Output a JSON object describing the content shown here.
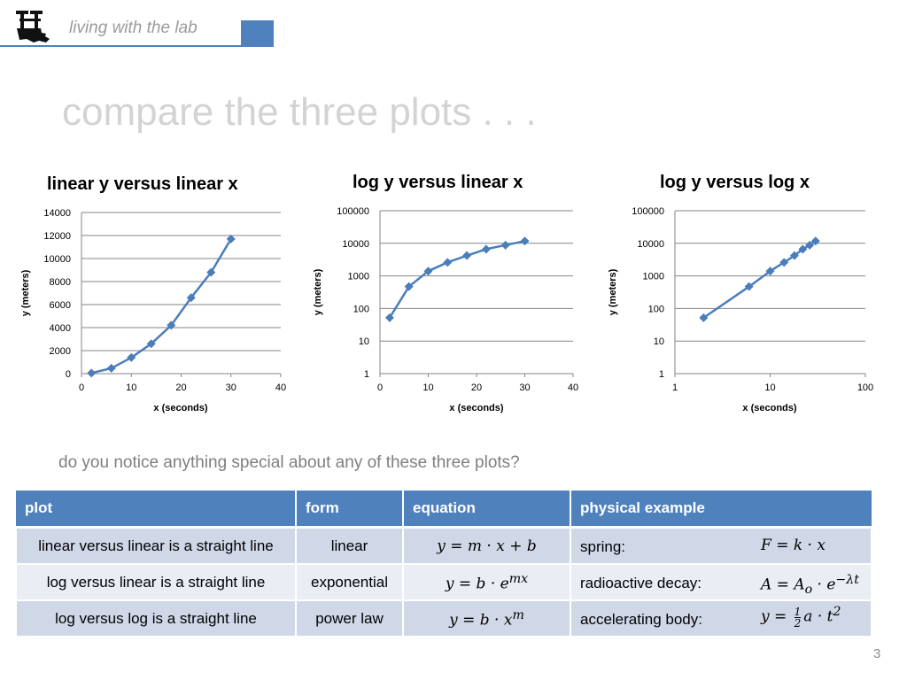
{
  "header": {
    "text": "living with the lab"
  },
  "slide_title": "compare the three plots . . .",
  "question": "do you notice anything special about any of these three plots?",
  "page_number": "3",
  "chart_data": [
    {
      "type": "line",
      "title": "linear y versus linear x",
      "xlabel": "x (seconds)",
      "ylabel": "y (meters)",
      "xscale": "linear",
      "yscale": "linear",
      "xlim": [
        0,
        40
      ],
      "ylim": [
        0,
        14000
      ],
      "xticks": [
        0,
        10,
        20,
        30,
        40
      ],
      "yticks": [
        0,
        2000,
        4000,
        6000,
        8000,
        10000,
        12000,
        14000
      ],
      "xtick_labels": [
        "0",
        "10",
        "20",
        "30",
        "40"
      ],
      "ytick_labels": [
        "0",
        "2000",
        "4000",
        "6000",
        "8000",
        "10000",
        "12000",
        "14000"
      ],
      "grid": "horizontal",
      "legend": "none",
      "color": "#4a7ebb",
      "x": [
        2,
        6,
        10,
        14,
        18,
        22,
        26,
        30
      ],
      "y": [
        52,
        470,
        1400,
        2600,
        4200,
        6600,
        8800,
        11700
      ]
    },
    {
      "type": "line",
      "title": "log y versus linear x",
      "xlabel": "x (seconds)",
      "ylabel": "y (meters)",
      "xscale": "linear",
      "yscale": "log",
      "xlim": [
        0,
        40
      ],
      "ylim": [
        1,
        100000
      ],
      "xticks": [
        0,
        10,
        20,
        30,
        40
      ],
      "yticks": [
        1,
        10,
        100,
        1000,
        10000,
        100000
      ],
      "xtick_labels": [
        "0",
        "10",
        "20",
        "30",
        "40"
      ],
      "ytick_labels": [
        "1",
        "10",
        "100",
        "1000",
        "10000",
        "100000"
      ],
      "grid": "horizontal",
      "legend": "none",
      "color": "#4a7ebb",
      "x": [
        2,
        6,
        10,
        14,
        18,
        22,
        26,
        30
      ],
      "y": [
        52,
        470,
        1400,
        2600,
        4200,
        6600,
        8800,
        11700
      ]
    },
    {
      "type": "line",
      "title": "log y versus log x",
      "xlabel": "x (seconds)",
      "ylabel": "y (meters)",
      "xscale": "log",
      "yscale": "log",
      "xlim": [
        1,
        100
      ],
      "ylim": [
        1,
        100000
      ],
      "xticks": [
        1,
        10,
        100
      ],
      "yticks": [
        1,
        10,
        100,
        1000,
        10000,
        100000
      ],
      "xtick_labels": [
        "1",
        "10",
        "100"
      ],
      "ytick_labels": [
        "1",
        "10",
        "100",
        "1000",
        "10000",
        "100000"
      ],
      "grid": "horizontal",
      "legend": "none",
      "color": "#4a7ebb",
      "x": [
        2,
        6,
        10,
        14,
        18,
        22,
        26,
        30
      ],
      "y": [
        52,
        470,
        1400,
        2600,
        4200,
        6600,
        8800,
        11700
      ]
    }
  ],
  "table": {
    "headers": [
      "plot",
      "form",
      "equation",
      "physical example"
    ],
    "rows": [
      {
        "plot": "linear versus linear is a straight line",
        "form": "linear",
        "equation": "y = m · x + b",
        "example_label": "spring:",
        "example_eq": "F = k · x"
      },
      {
        "plot": "log versus linear is a straight line",
        "form": "exponential",
        "equation": "y = b · e",
        "equation_sup": "mx",
        "example_label": "radioactive decay:",
        "example_eq": "A = A",
        "example_sub": "o",
        "example_eq2": " · e",
        "example_sup": "−λt"
      },
      {
        "plot": "log versus log is a straight line",
        "form": "power law",
        "equation": "y = b · x",
        "equation_sup": "m",
        "example_label": "accelerating body:",
        "example_eq": "y = ",
        "example_frac_num": "1",
        "example_frac_den": "2",
        "example_eq2": "a · t",
        "example_sup": "2"
      }
    ]
  }
}
